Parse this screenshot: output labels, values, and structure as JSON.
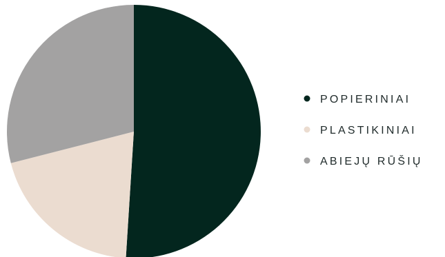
{
  "chart_data": {
    "type": "pie",
    "title": "",
    "slices": [
      {
        "label": "POPIERINIAI",
        "value": 51,
        "color": "#03261e"
      },
      {
        "label": "PLASTIKINIAI",
        "value": 20,
        "color": "#ebdcd0"
      },
      {
        "label": "ABIEJŲ RŪŠIŲ",
        "value": 29,
        "color": "#a3a2a2"
      }
    ],
    "legend_position": "right",
    "start_angle_deg": 0,
    "direction": "clockwise"
  }
}
